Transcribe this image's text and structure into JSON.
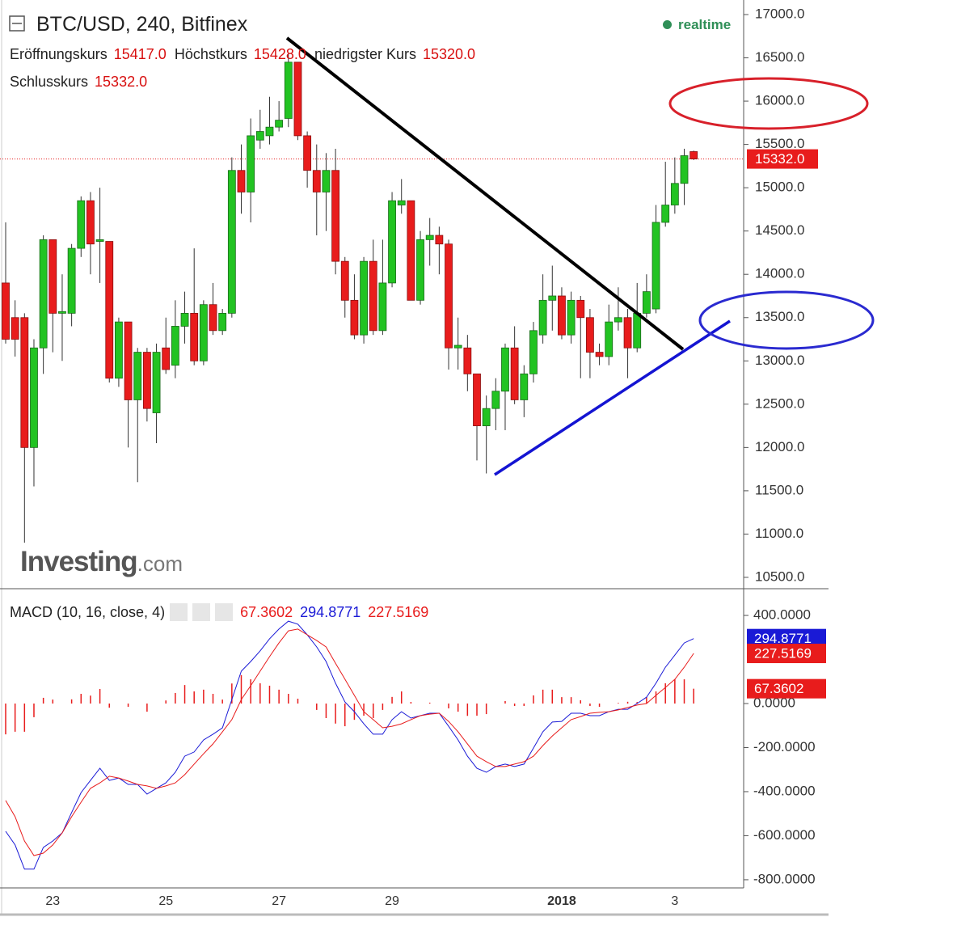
{
  "chart_data": [
    {
      "type": "candlestick",
      "title": "BTC/USD, 240, Bitfinex",
      "status": "realtime",
      "ohlc_legend": [
        {
          "name": "Eröffnungskurs",
          "value": "15417.0"
        },
        {
          "name": "Höchstkurs",
          "value": "15428.0"
        },
        {
          "name": "niedrigster Kurs",
          "value": "15320.0"
        },
        {
          "name": "Schlusskurs",
          "value": "15332.0"
        }
      ],
      "watermark": [
        "Investing",
        ".com"
      ],
      "categories": [
        null,
        null,
        null,
        null,
        null,
        "23",
        null,
        null,
        null,
        null,
        null,
        null,
        null,
        null,
        null,
        null,
        null,
        "25",
        null,
        null,
        null,
        null,
        null,
        null,
        null,
        null,
        null,
        null,
        null,
        "27",
        null,
        null,
        null,
        null,
        null,
        null,
        null,
        null,
        null,
        null,
        null,
        "29",
        null,
        null,
        null,
        null,
        null,
        null,
        null,
        null,
        null,
        null,
        null,
        null,
        null,
        null,
        null,
        null,
        null,
        "2018",
        null,
        null,
        null,
        null,
        null,
        null,
        null,
        null,
        null,
        null,
        null,
        "3",
        null,
        null
      ],
      "open": [
        13900,
        13500,
        13500,
        12000,
        13150,
        14400,
        13550,
        13550,
        14300,
        14850,
        14380,
        14380,
        12800,
        13450,
        12550,
        13100,
        12400,
        13150,
        12950,
        13400,
        13550,
        13000,
        13650,
        13350,
        13550,
        15200,
        14950,
        15550,
        15600,
        15700,
        15800,
        16450,
        15600,
        15200,
        14950,
        15200,
        14150,
        13700,
        13300,
        14150,
        13350,
        13900,
        14800,
        14850,
        13700,
        14400,
        14450,
        14350,
        13150,
        13150,
        12850,
        12250,
        12450,
        12650,
        13150,
        12550,
        12850,
        13300,
        13700,
        13750,
        13300,
        13700,
        13500,
        13100,
        13050,
        13450,
        13500,
        13150,
        13550,
        13600,
        14600,
        14800,
        15050,
        15417
      ],
      "high": [
        14600,
        13700,
        13550,
        13250,
        14450,
        14400,
        14000,
        14350,
        14900,
        14950,
        15000,
        14380,
        13500,
        13450,
        13150,
        13150,
        13200,
        13500,
        13700,
        13800,
        14300,
        13700,
        13900,
        13600,
        15350,
        15500,
        15800,
        15900,
        16050,
        16000,
        16550,
        16450,
        15650,
        15500,
        15400,
        15450,
        14200,
        14000,
        14200,
        14400,
        14400,
        14950,
        15100,
        14850,
        14500,
        14650,
        14550,
        14400,
        13500,
        13300,
        12850,
        12600,
        12800,
        13200,
        13400,
        12950,
        13450,
        14000,
        14100,
        13850,
        13800,
        13750,
        13600,
        13200,
        13650,
        13850,
        13600,
        13900,
        14000,
        14800,
        15300,
        15350,
        15450,
        15428
      ],
      "low": [
        13200,
        13050,
        10900,
        11550,
        12850,
        13100,
        13000,
        13400,
        14200,
        14000,
        13900,
        12750,
        12700,
        12000,
        11600,
        12300,
        12050,
        12850,
        12800,
        13200,
        12950,
        12950,
        13300,
        13300,
        13500,
        14700,
        14600,
        15450,
        15500,
        15650,
        15700,
        15550,
        15000,
        14450,
        14500,
        14000,
        13500,
        13250,
        13200,
        13300,
        13300,
        13850,
        14700,
        13700,
        13650,
        14100,
        14000,
        12900,
        12900,
        12650,
        11850,
        11700,
        12200,
        12200,
        12500,
        12350,
        12750,
        13200,
        13350,
        13250,
        13200,
        12800,
        12800,
        12950,
        12950,
        13350,
        12800,
        13100,
        13500,
        13550,
        14550,
        14700,
        14800,
        15320
      ],
      "close": [
        13250,
        13250,
        12000,
        13150,
        14400,
        13550,
        13570,
        14300,
        14850,
        14350,
        14400,
        12800,
        13450,
        12550,
        13100,
        12450,
        13100,
        12900,
        13400,
        13550,
        13000,
        13650,
        13350,
        13550,
        15200,
        14950,
        15600,
        15650,
        15700,
        15780,
        16450,
        15600,
        15200,
        14950,
        15200,
        14150,
        13700,
        13300,
        14150,
        13350,
        13900,
        14850,
        14850,
        13700,
        14400,
        14450,
        14350,
        13150,
        13180,
        12850,
        12250,
        12450,
        12650,
        13150,
        12550,
        12850,
        13350,
        13700,
        13750,
        13300,
        13700,
        13500,
        13100,
        13050,
        13450,
        13500,
        13150,
        13550,
        13800,
        14600,
        14800,
        15050,
        15370,
        15332
      ],
      "up_color": "#22c322",
      "down_color": "#e81c1c",
      "price_marker": {
        "value": 15332,
        "label": "15332.0"
      },
      "ylim": [
        10369,
        17168
      ],
      "yticks": [
        {
          "value": 10500,
          "label": "10500.0"
        },
        {
          "value": 11000,
          "label": "11000.0"
        },
        {
          "value": 11500,
          "label": "11500.0"
        },
        {
          "value": 12000,
          "label": "12000.0"
        },
        {
          "value": 12500,
          "label": "12500.0"
        },
        {
          "value": 13000,
          "label": "13000.0"
        },
        {
          "value": 13500,
          "label": "13500.0"
        },
        {
          "value": 14000,
          "label": "14000.0"
        },
        {
          "value": 14500,
          "label": "14500.0"
        },
        {
          "value": 15000,
          "label": "15000.0"
        },
        {
          "value": 15500,
          "label": "15500.0"
        },
        {
          "value": 16000,
          "label": "16000.0"
        },
        {
          "value": 16500,
          "label": "16500.0"
        },
        {
          "value": 17000,
          "label": "17000.0"
        }
      ]
    },
    {
      "type": "macd",
      "title": "MACD (10, 16, close, 4)",
      "series": [
        {
          "style": "bar",
          "color": "#e81c1c",
          "last_label": "67.3602",
          "values": [
            -140,
            -128,
            -128,
            -62,
            26,
            18,
            0,
            19,
            44,
            36,
            66,
            -19,
            0,
            -15,
            0,
            -37,
            0,
            14,
            48,
            84,
            55,
            63,
            44,
            18,
            91,
            129,
            110,
            92,
            81,
            63,
            44,
            22,
            0,
            -29,
            -66,
            -91,
            -103,
            -74,
            -55,
            -66,
            -29,
            30,
            55,
            7,
            0,
            4,
            0,
            -22,
            -37,
            -56,
            -55,
            -48,
            0,
            11,
            -11,
            -11,
            37,
            63,
            63,
            29,
            29,
            15,
            -11,
            -15,
            0,
            3,
            8,
            7,
            29,
            55,
            92,
            110,
            110,
            67.3602
          ]
        },
        {
          "style": "line",
          "color": "#1a1ad6",
          "last_label": "294.8771",
          "values": [
            -580,
            -642,
            -752,
            -752,
            -653,
            -624,
            -587,
            -495,
            -404,
            -349,
            -294,
            -349,
            -338,
            -367,
            -367,
            -411,
            -385,
            -360,
            -312,
            -239,
            -220,
            -165,
            -139,
            -110,
            18,
            147,
            191,
            239,
            294,
            338,
            374,
            360,
            312,
            257,
            191,
            92,
            7,
            -37,
            -92,
            -139,
            -139,
            -73,
            -37,
            -66,
            -55,
            -44,
            -44,
            -103,
            -165,
            -239,
            -294,
            -312,
            -286,
            -275,
            -286,
            -275,
            -202,
            -128,
            -84,
            -81,
            -44,
            -44,
            -55,
            -55,
            -37,
            -26,
            -26,
            0,
            29,
            92,
            165,
            220,
            275,
            294.8771
          ]
        },
        {
          "style": "line",
          "color": "#e81c1c",
          "last_label": "227.5169",
          "values": [
            -440,
            -514,
            -624,
            -690,
            -679,
            -642,
            -587,
            -514,
            -448,
            -385,
            -360,
            -330,
            -338,
            -352,
            -367,
            -374,
            -385,
            -374,
            -360,
            -323,
            -275,
            -228,
            -183,
            -128,
            -73,
            18,
            81,
            147,
            213,
            275,
            330,
            338,
            312,
            286,
            257,
            183,
            110,
            37,
            -37,
            -73,
            -110,
            -103,
            -92,
            -73,
            -55,
            -48,
            -44,
            -81,
            -128,
            -183,
            -239,
            -264,
            -286,
            -286,
            -275,
            -264,
            -239,
            -191,
            -147,
            -110,
            -73,
            -59,
            -44,
            -40,
            -37,
            -29,
            -18,
            -7,
            0,
            37,
            73,
            110,
            165,
            227.5169
          ]
        }
      ],
      "ylim": [
        -837,
        514
      ],
      "yticks": [
        {
          "value": 400,
          "label": "400.0000"
        },
        {
          "value": 0,
          "label": "0.0000"
        },
        {
          "value": -200,
          "label": "-200.0000"
        },
        {
          "value": -400,
          "label": "-400.0000"
        },
        {
          "value": -600,
          "label": "-600.0000"
        },
        {
          "value": -800,
          "label": "-800.0000"
        }
      ]
    }
  ]
}
